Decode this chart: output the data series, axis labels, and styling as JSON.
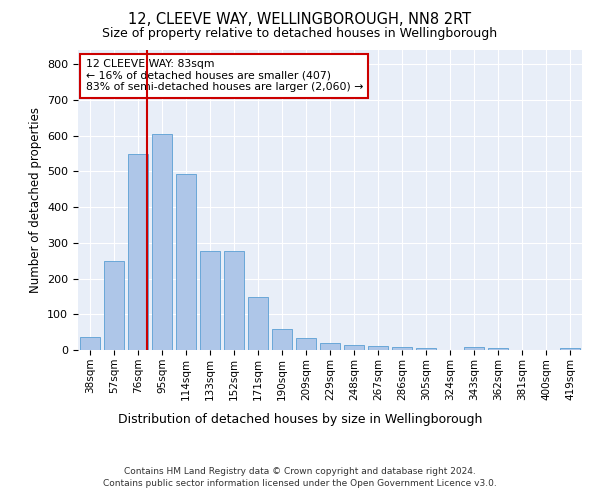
{
  "title1": "12, CLEEVE WAY, WELLINGBOROUGH, NN8 2RT",
  "title2": "Size of property relative to detached houses in Wellingborough",
  "xlabel": "Distribution of detached houses by size in Wellingborough",
  "ylabel": "Number of detached properties",
  "categories": [
    "38sqm",
    "57sqm",
    "76sqm",
    "95sqm",
    "114sqm",
    "133sqm",
    "152sqm",
    "171sqm",
    "190sqm",
    "209sqm",
    "229sqm",
    "248sqm",
    "267sqm",
    "286sqm",
    "305sqm",
    "324sqm",
    "343sqm",
    "362sqm",
    "381sqm",
    "400sqm",
    "419sqm"
  ],
  "values": [
    37,
    248,
    548,
    605,
    493,
    278,
    278,
    148,
    60,
    35,
    20,
    15,
    11,
    9,
    5,
    0,
    8,
    6,
    0,
    0,
    5
  ],
  "bar_color": "#aec6e8",
  "bar_edge_color": "#5a9fd4",
  "vline_color": "#cc0000",
  "background_color": "#e8eef8",
  "ylim": [
    0,
    840
  ],
  "yticks": [
    0,
    100,
    200,
    300,
    400,
    500,
    600,
    700,
    800
  ],
  "annotation_line1": "12 CLEEVE WAY: 83sqm",
  "annotation_line2": "← 16% of detached houses are smaller (407)",
  "annotation_line3": "83% of semi-detached houses are larger (2,060) →",
  "footer1": "Contains HM Land Registry data © Crown copyright and database right 2024.",
  "footer2": "Contains public sector information licensed under the Open Government Licence v3.0."
}
